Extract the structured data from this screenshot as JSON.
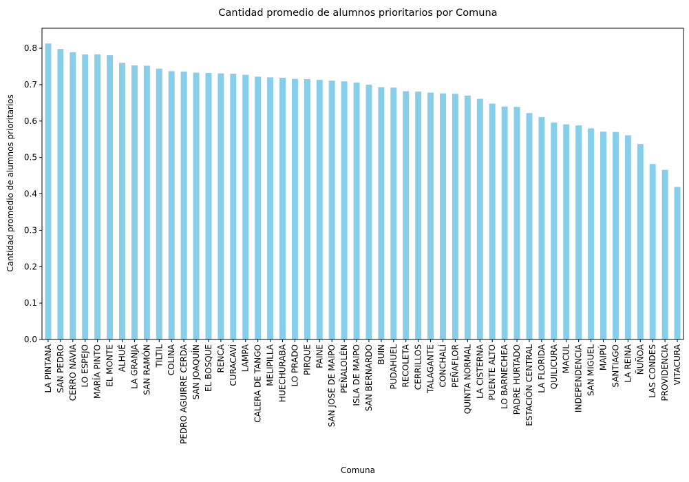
{
  "chart_data": {
    "type": "bar",
    "title": "Cantidad promedio de alumnos prioritarios por Comuna",
    "xlabel": "Comuna",
    "ylabel": "Cantidad promedio de alumnos prioritarios",
    "ylim": [
      0,
      0.855
    ],
    "yticks": [
      "0.0",
      "0.1",
      "0.2",
      "0.3",
      "0.4",
      "0.5",
      "0.6",
      "0.7",
      "0.8"
    ],
    "grid": false,
    "bar_color": "#87ceeb",
    "categories": [
      "LA PINTANA",
      "SAN PEDRO",
      "CERRO NAVIA",
      "LO ESPEJO",
      "MARÍA PINTO",
      "EL MONTE",
      "ALHUÉ",
      "LA GRANJA",
      "SAN RAMÓN",
      "TILTIL",
      "COLINA",
      "PEDRO AGUIRRE CERDA",
      "SAN JOAQUÍN",
      "EL BOSQUE",
      "RENCA",
      "CURACAVÍ",
      "LAMPA",
      "CALERA DE TANGO",
      "MELIPILLA",
      "HUECHURABA",
      "LO PRADO",
      "PIRQUE",
      "PAINE",
      "SAN JOSÉ DE MAIPO",
      "PEÑALOLÉN",
      "ISLA DE MAIPO",
      "SAN BERNARDO",
      "BUIN",
      "PUDAHUEL",
      "RECOLETA",
      "CERRILLOS",
      "TALAGANTE",
      "CONCHALÍ",
      "PEÑAFLOR",
      "QUINTA NORMAL",
      "LA CISTERNA",
      "PUENTE ALTO",
      "LO BARNECHEA",
      "PADRE HURTADO",
      "ESTACIÓN CENTRAL",
      "LA FLORIDA",
      "QUILICURA",
      "MACUL",
      "INDEPENDENCIA",
      "SAN MIGUEL",
      "MAIPÚ",
      "SANTIAGO",
      "LA REINA",
      "ÑUÑOA",
      "LAS CONDES",
      "PROVIDENCIA",
      "VITACURA"
    ],
    "values": [
      0.813,
      0.798,
      0.789,
      0.783,
      0.783,
      0.781,
      0.76,
      0.753,
      0.752,
      0.744,
      0.737,
      0.736,
      0.733,
      0.732,
      0.731,
      0.73,
      0.727,
      0.722,
      0.72,
      0.719,
      0.716,
      0.715,
      0.713,
      0.711,
      0.709,
      0.706,
      0.7,
      0.693,
      0.692,
      0.682,
      0.681,
      0.678,
      0.676,
      0.675,
      0.67,
      0.661,
      0.648,
      0.64,
      0.639,
      0.622,
      0.611,
      0.596,
      0.591,
      0.588,
      0.58,
      0.571,
      0.57,
      0.561,
      0.537,
      0.482,
      0.466,
      0.419
    ]
  }
}
